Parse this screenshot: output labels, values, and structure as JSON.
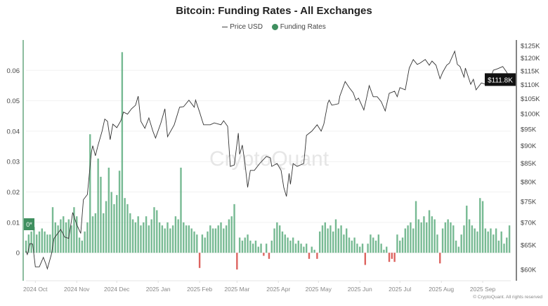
{
  "chart_data": {
    "type": "bar+line",
    "title": "Bitcoin: Funding Rates - All Exchanges",
    "legend": {
      "placement": "top-center",
      "entries": [
        "Price USD",
        "Funding Rates"
      ]
    },
    "watermark": "CryptoQuant",
    "copyright": "© CryptoQuant. All rights reserved",
    "xlim": [
      "2024-09-24",
      "2025-09-22"
    ],
    "x_ticks": [
      {
        "date": "2024-10-01",
        "label": "2024 Oct"
      },
      {
        "date": "2024-11-01",
        "label": "2024 Nov"
      },
      {
        "date": "2024-12-01",
        "label": "2024 Dec"
      },
      {
        "date": "2025-01-01",
        "label": "2025 Jan"
      },
      {
        "date": "2025-02-01",
        "label": "2025 Feb"
      },
      {
        "date": "2025-03-01",
        "label": "2025 Mar"
      },
      {
        "date": "2025-04-01",
        "label": "2025 Apr"
      },
      {
        "date": "2025-05-01",
        "label": "2025 May"
      },
      {
        "date": "2025-06-01",
        "label": "2025 Jun"
      },
      {
        "date": "2025-07-01",
        "label": "2025 Jul"
      },
      {
        "date": "2025-08-01",
        "label": "2025 Aug"
      },
      {
        "date": "2025-09-01",
        "label": "2025 Sep"
      }
    ],
    "left_axis": {
      "ylim": [
        -0.0092,
        0.07
      ],
      "ticks": [
        0,
        0.01,
        0.02,
        0.03,
        0.04,
        0.05,
        0.06
      ],
      "tick_labels": [
        "0",
        "0.01",
        "0.02",
        "0.03",
        "0.04",
        "0.05",
        "0.06"
      ],
      "current_badge": "0*",
      "color": "#3f8f5f"
    },
    "right_axis": {
      "scale": "log",
      "ylim": [
        57.8,
        127.3
      ],
      "ticks": [
        60,
        65,
        70,
        75,
        80,
        85,
        90,
        95,
        100,
        105,
        110,
        115,
        120,
        125
      ],
      "tick_labels": [
        "$60K",
        "$65K",
        "$70K",
        "$75K",
        "$80K",
        "$85K",
        "$90K",
        "$95K",
        "$100K",
        "$105K",
        "$110K",
        "$115K",
        "$120K",
        "$125K"
      ],
      "current_badge": "$111.8K"
    },
    "grid": true,
    "series": [
      {
        "name": "Funding Rates",
        "type": "bar",
        "axis": "left",
        "color_positive": "#5fae80",
        "color_negative": "#d9534f",
        "start": "2024-09-24",
        "step_days": 2,
        "values": [
          0.004,
          0.006,
          0.007,
          0.0085,
          0.006,
          0.007,
          0.008,
          0.007,
          0.006,
          0.006,
          0.015,
          0.01,
          0.009,
          0.011,
          0.012,
          0.01,
          0.011,
          0.009,
          0.015,
          0.012,
          0.005,
          0.004,
          0.007,
          0.01,
          0.039,
          0.012,
          0.013,
          0.031,
          0.025,
          0.013,
          0.017,
          0.028,
          0.02,
          0.016,
          0.019,
          0.027,
          0.066,
          0.018,
          0.016,
          0.013,
          0.011,
          0.01,
          0.012,
          0.009,
          0.01,
          0.012,
          0.009,
          0.011,
          0.015,
          0.014,
          0.01,
          0.009,
          0.008,
          0.01,
          0.008,
          0.009,
          0.012,
          0.011,
          0.028,
          0.01,
          0.009,
          0.009,
          0.008,
          0.007,
          0.006,
          -0.005,
          0.006,
          0.005,
          0.007,
          0.009,
          0.008,
          0.008,
          0.009,
          0.01,
          0.008,
          0.009,
          0.011,
          0.012,
          0.016,
          -0.0055,
          0.005,
          0.004,
          0.005,
          0.006,
          0.004,
          0.003,
          0.004,
          0.002,
          0.003,
          -0.001,
          0.003,
          -0.002,
          0.004,
          0.008,
          0.01,
          0.009,
          0.007,
          0.006,
          0.005,
          0.004,
          0.005,
          0.003,
          0.004,
          0.003,
          0.002,
          0.003,
          -0.002,
          0.002,
          0.001,
          -0.002,
          0.007,
          0.009,
          0.01,
          0.008,
          0.009,
          0.007,
          0.011,
          0.008,
          0.009,
          0.006,
          0.008,
          0.005,
          0.004,
          0.005,
          0.003,
          0.002,
          0.003,
          -0.004,
          0.003,
          0.006,
          0.005,
          0.004,
          0.006,
          0.003,
          0.001,
          0.002,
          -0.003,
          -0.002,
          -0.003,
          0.006,
          0.004,
          0.005,
          0.008,
          0.009,
          0.01,
          0.008,
          0.017,
          0.011,
          0.01,
          0.012,
          0.01,
          0.014,
          0.012,
          0.011,
          0.006,
          -0.0035,
          0.008,
          0.01,
          0.011,
          0.01,
          0.009,
          0.004,
          0.002,
          0.006,
          0.009,
          0.0155,
          0.011,
          0.009,
          0.008,
          0.007,
          0.018,
          0.017,
          0.008,
          0.007,
          0.008,
          0.006,
          0.008,
          0.004,
          0.007,
          0.003,
          0.005,
          0.009
        ]
      },
      {
        "name": "Price USD",
        "type": "line",
        "axis": "right",
        "unit": "K USD",
        "color": "#333333",
        "points": [
          [
            "2024-09-24",
            63.7
          ],
          [
            "2024-09-25",
            63.0
          ],
          [
            "2024-09-27",
            65.3
          ],
          [
            "2024-09-29",
            65.2
          ],
          [
            "2024-10-01",
            60.5
          ],
          [
            "2024-10-04",
            60.5
          ],
          [
            "2024-10-07",
            62.4
          ],
          [
            "2024-10-09",
            61.0
          ],
          [
            "2024-10-10",
            60.1
          ],
          [
            "2024-10-13",
            63.0
          ],
          [
            "2024-10-15",
            66.4
          ],
          [
            "2024-10-20",
            68.4
          ],
          [
            "2024-10-23",
            66.7
          ],
          [
            "2024-10-26",
            66.4
          ],
          [
            "2024-10-29",
            72.3
          ],
          [
            "2024-11-01",
            69.5
          ],
          [
            "2024-11-04",
            67.5
          ],
          [
            "2024-11-06",
            75.4
          ],
          [
            "2024-11-09",
            76.7
          ],
          [
            "2024-11-12",
            88.1
          ],
          [
            "2024-11-13",
            90.0
          ],
          [
            "2024-11-15",
            87.1
          ],
          [
            "2024-11-17",
            90.2
          ],
          [
            "2024-11-20",
            94.4
          ],
          [
            "2024-11-22",
            98.2
          ],
          [
            "2024-11-24",
            97.5
          ],
          [
            "2024-11-26",
            91.8
          ],
          [
            "2024-11-28",
            96.6
          ],
          [
            "2024-12-01",
            95.5
          ],
          [
            "2024-12-04",
            97.7
          ],
          [
            "2024-12-06",
            100.5
          ],
          [
            "2024-12-09",
            99.8
          ],
          [
            "2024-12-12",
            101.6
          ],
          [
            "2024-12-15",
            102.8
          ],
          [
            "2024-12-17",
            105.9
          ],
          [
            "2024-12-19",
            97.5
          ],
          [
            "2024-12-22",
            95.3
          ],
          [
            "2024-12-25",
            98.6
          ],
          [
            "2024-12-28",
            94.4
          ],
          [
            "2024-12-30",
            92.3
          ],
          [
            "2025-01-03",
            97.0
          ],
          [
            "2025-01-06",
            101.6
          ],
          [
            "2025-01-08",
            92.7
          ],
          [
            "2025-01-13",
            96.4
          ],
          [
            "2025-01-17",
            102.1
          ],
          [
            "2025-01-20",
            102.3
          ],
          [
            "2025-01-24",
            104.5
          ],
          [
            "2025-01-28",
            102.1
          ],
          [
            "2025-01-29",
            104.5
          ],
          [
            "2025-02-01",
            100.5
          ],
          [
            "2025-02-03",
            97.7
          ],
          [
            "2025-02-04",
            96.4
          ],
          [
            "2025-02-09",
            96.4
          ],
          [
            "2025-02-12",
            97.0
          ],
          [
            "2025-02-17",
            96.4
          ],
          [
            "2025-02-19",
            97.7
          ],
          [
            "2025-02-22",
            95.9
          ],
          [
            "2025-02-24",
            84.1
          ],
          [
            "2025-02-27",
            84.5
          ],
          [
            "2025-03-02",
            93.8
          ],
          [
            "2025-03-03",
            87.5
          ],
          [
            "2025-03-05",
            90.2
          ],
          [
            "2025-03-07",
            84.9
          ],
          [
            "2025-03-09",
            78.5
          ],
          [
            "2025-03-11",
            83.0
          ],
          [
            "2025-03-14",
            83.0
          ],
          [
            "2025-03-18",
            84.9
          ],
          [
            "2025-03-23",
            86.9
          ],
          [
            "2025-03-26",
            86.5
          ],
          [
            "2025-03-27",
            84.1
          ],
          [
            "2025-03-31",
            84.9
          ],
          [
            "2025-04-03",
            83.0
          ],
          [
            "2025-04-05",
            78.5
          ],
          [
            "2025-04-07",
            76.2
          ],
          [
            "2025-04-09",
            82.2
          ],
          [
            "2025-04-10",
            79.3
          ],
          [
            "2025-04-12",
            84.9
          ],
          [
            "2025-04-15",
            84.1
          ],
          [
            "2025-04-20",
            84.9
          ],
          [
            "2025-04-22",
            93.1
          ],
          [
            "2025-04-26",
            94.4
          ],
          [
            "2025-04-30",
            96.4
          ],
          [
            "2025-05-03",
            94.4
          ],
          [
            "2025-05-05",
            96.6
          ],
          [
            "2025-05-08",
            103.5
          ],
          [
            "2025-05-09",
            104.5
          ],
          [
            "2025-05-11",
            102.8
          ],
          [
            "2025-05-16",
            103.3
          ],
          [
            "2025-05-17",
            105.9
          ],
          [
            "2025-05-21",
            111.1
          ],
          [
            "2025-05-24",
            108.9
          ],
          [
            "2025-05-27",
            107.1
          ],
          [
            "2025-05-29",
            104.5
          ],
          [
            "2025-05-31",
            105.2
          ],
          [
            "2025-06-04",
            101.2
          ],
          [
            "2025-06-06",
            105.2
          ],
          [
            "2025-06-08",
            109.6
          ],
          [
            "2025-06-11",
            105.7
          ],
          [
            "2025-06-14",
            105.7
          ],
          [
            "2025-06-17",
            104.0
          ],
          [
            "2025-06-20",
            100.9
          ],
          [
            "2025-06-23",
            106.9
          ],
          [
            "2025-06-27",
            107.6
          ],
          [
            "2025-06-29",
            105.7
          ],
          [
            "2025-07-01",
            108.9
          ],
          [
            "2025-07-05",
            108.1
          ],
          [
            "2025-07-08",
            116.1
          ],
          [
            "2025-07-11",
            119.4
          ],
          [
            "2025-07-14",
            117.5
          ],
          [
            "2025-07-16",
            118.0
          ],
          [
            "2025-07-20",
            119.4
          ],
          [
            "2025-07-23",
            117.2
          ],
          [
            "2025-07-25",
            118.8
          ],
          [
            "2025-07-28",
            117.2
          ],
          [
            "2025-07-31",
            112.1
          ],
          [
            "2025-08-02",
            114.5
          ],
          [
            "2025-08-05",
            117.2
          ],
          [
            "2025-08-07",
            118.0
          ],
          [
            "2025-08-11",
            122.7
          ],
          [
            "2025-08-13",
            117.5
          ],
          [
            "2025-08-15",
            116.7
          ],
          [
            "2025-08-18",
            112.7
          ],
          [
            "2025-08-19",
            116.1
          ],
          [
            "2025-08-23",
            110.1
          ],
          [
            "2025-08-25",
            111.9
          ],
          [
            "2025-08-27",
            108.1
          ],
          [
            "2025-08-31",
            110.6
          ],
          [
            "2025-09-03",
            110.1
          ],
          [
            "2025-09-06",
            111.4
          ],
          [
            "2025-09-09",
            115.3
          ],
          [
            "2025-09-12",
            115.8
          ],
          [
            "2025-09-16",
            116.7
          ],
          [
            "2025-09-19",
            114.5
          ],
          [
            "2025-09-21",
            111.9
          ]
        ]
      }
    ]
  }
}
